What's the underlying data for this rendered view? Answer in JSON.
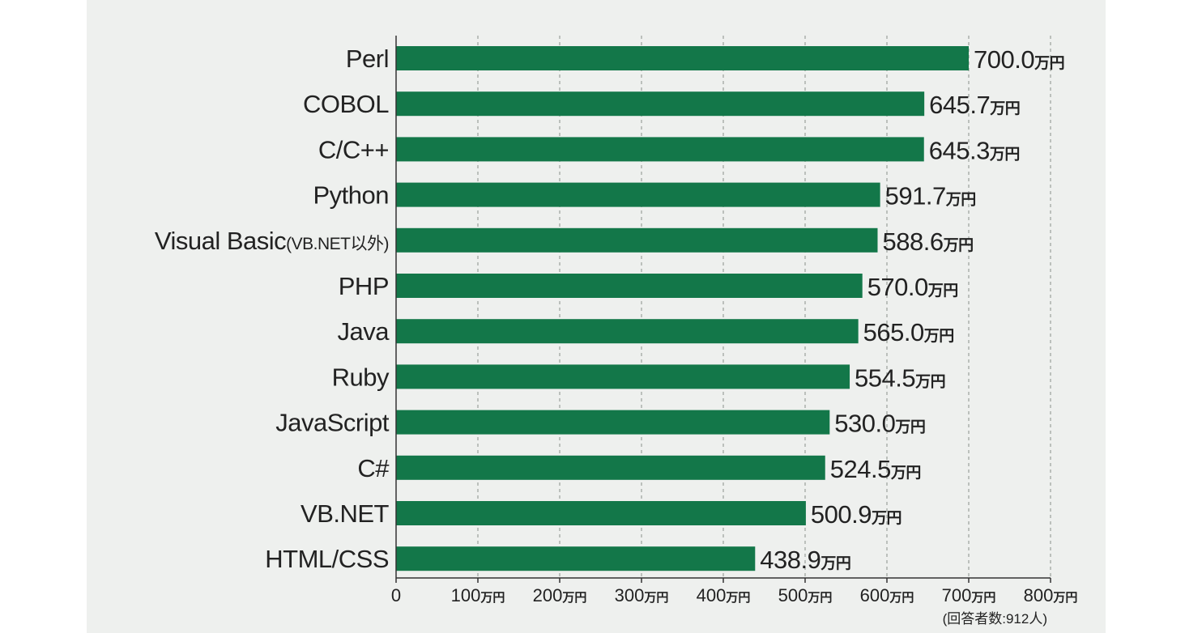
{
  "chart_data": {
    "type": "bar",
    "orientation": "horizontal",
    "categories": [
      {
        "label": "Perl",
        "suffix": ""
      },
      {
        "label": "COBOL",
        "suffix": ""
      },
      {
        "label": "C/C++",
        "suffix": ""
      },
      {
        "label": "Python",
        "suffix": ""
      },
      {
        "label": "Visual Basic",
        "suffix": "(VB.NET以外)"
      },
      {
        "label": "PHP",
        "suffix": ""
      },
      {
        "label": "Java",
        "suffix": ""
      },
      {
        "label": "Ruby",
        "suffix": ""
      },
      {
        "label": "JavaScript",
        "suffix": ""
      },
      {
        "label": "C#",
        "suffix": ""
      },
      {
        "label": "VB.NET",
        "suffix": ""
      },
      {
        "label": "HTML/CSS",
        "suffix": ""
      }
    ],
    "values": [
      700.0,
      645.7,
      645.3,
      591.7,
      588.6,
      570.0,
      565.0,
      554.5,
      530.0,
      524.5,
      500.9,
      438.9
    ],
    "value_unit": "万円",
    "xlim": [
      0,
      800
    ],
    "ticks": [
      0,
      100,
      200,
      300,
      400,
      500,
      600,
      700,
      800
    ],
    "tick_unit": "万円",
    "grid": true,
    "bar_color": "#137749",
    "background_color": "#eef0ee",
    "note": "(回答者数:912人)"
  }
}
